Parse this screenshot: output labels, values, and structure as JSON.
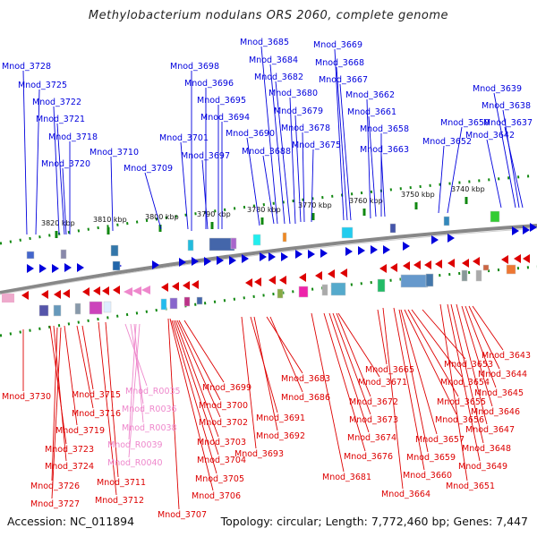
{
  "title": "Methylobacterium nodulans ORS 2060, complete genome",
  "footer": {
    "accession": "Accession: NC_011894",
    "topology": "Topology: circular; Length: 7,772,460 bp; Genes: 7,447"
  },
  "colors": {
    "forward": "#0000dd",
    "reverse": "#dd0000",
    "rna": "#ee88cc",
    "scale_tick": "#118811",
    "backbone": "#888888"
  },
  "scale_ticks": [
    "3820 kbp",
    "3810 kbp",
    "3800 kbp",
    "3790 kbp",
    "3780 kbp",
    "3770 kbp",
    "3760 kbp",
    "3750 kbp",
    "3740 kbp"
  ],
  "top_labels": [
    "Mnod_3728",
    "Mnod_3725",
    "Mnod_3722",
    "Mnod_3721",
    "Mnod_3718",
    "Mnod_3720",
    "Mnod_3710",
    "Mnod_3709",
    "Mnod_3698",
    "Mnod_3696",
    "Mnod_3695",
    "Mnod_3694",
    "Mnod_3701",
    "Mnod_3697",
    "Mnod_3690",
    "Mnod_3688",
    "Mnod_3685",
    "Mnod_3684",
    "Mnod_3682",
    "Mnod_3680",
    "Mnod_3679",
    "Mnod_3678",
    "Mnod_3675",
    "Mnod_3669",
    "Mnod_3668",
    "Mnod_3667",
    "Mnod_3662",
    "Mnod_3661",
    "Mnod_3658",
    "Mnod_3663",
    "Mnod_3650",
    "Mnod_3652",
    "Mnod_3639",
    "Mnod_3638",
    "Mnod_3637",
    "Mnod_3642"
  ],
  "bottom_labels": [
    "Mnod_3730",
    "Mnod_3715",
    "Mnod_3716",
    "Mnod_3719",
    "Mnod_3723",
    "Mnod_3724",
    "Mnod_3726",
    "Mnod_3727",
    "Mnod_R0035",
    "Mnod_R0036",
    "Mnod_R0038",
    "Mnod_R0039",
    "Mnod_R0040",
    "Mnod_3711",
    "Mnod_3712",
    "Mnod_3699",
    "Mnod_3700",
    "Mnod_3702",
    "Mnod_3703",
    "Mnod_3704",
    "Mnod_3705",
    "Mnod_3706",
    "Mnod_3707",
    "Mnod_3683",
    "Mnod_3686",
    "Mnod_3691",
    "Mnod_3692",
    "Mnod_3693",
    "Mnod_3671",
    "Mnod_3672",
    "Mnod_3673",
    "Mnod_3674",
    "Mnod_3676",
    "Mnod_3681",
    "Mnod_3665",
    "Mnod_3653",
    "Mnod_3654",
    "Mnod_3655",
    "Mnod_3656",
    "Mnod_3657",
    "Mnod_3659",
    "Mnod_3660",
    "Mnod_3664",
    "Mnod_3643",
    "Mnod_3644",
    "Mnod_3645",
    "Mnod_3646",
    "Mnod_3647",
    "Mnod_3648",
    "Mnod_3649",
    "Mnod_3651"
  ]
}
